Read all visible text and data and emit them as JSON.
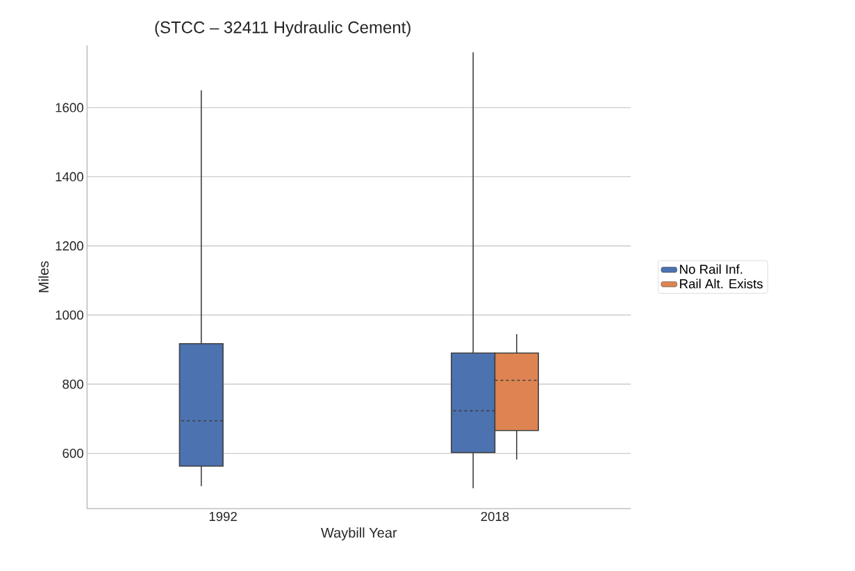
{
  "chart_data": {
    "type": "box",
    "title": "(STCC – 32411 Hydraulic Cement)",
    "xlabel": "Waybill Year",
    "ylabel": "Miles",
    "categories": [
      "1992",
      "2018"
    ],
    "series": [
      {
        "name": "No Rail Inf.",
        "color": "#4c72b0",
        "boxes": [
          {
            "low": 505,
            "q1": 563,
            "median": 694,
            "q3": 917,
            "high": 1650
          },
          {
            "low": 499,
            "q1": 602,
            "median": 723,
            "q3": 890,
            "high": 1760
          }
        ]
      },
      {
        "name": "Rail Alt. Exists",
        "color": "#dd8452",
        "boxes": [
          null,
          {
            "low": 582,
            "q1": 666,
            "median": 811,
            "q3": 890,
            "high": 945
          }
        ]
      }
    ],
    "ylim": [
      440,
      1780
    ],
    "yticks": [
      600,
      800,
      1000,
      1200,
      1400,
      1600
    ],
    "grid": "y",
    "legend": "right"
  }
}
